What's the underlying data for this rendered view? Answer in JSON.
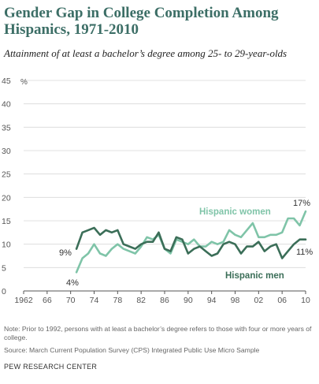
{
  "chart_data": {
    "type": "line",
    "title": "Gender Gap in College Completion Among Hispanics, 1971-2010",
    "subtitle": "Attainment of at least a bachelor’s degree among 25- to 29-year-olds",
    "ylabel": "%",
    "ylim": [
      0,
      45
    ],
    "yticks": [
      0,
      5,
      10,
      15,
      20,
      25,
      30,
      35,
      40,
      45
    ],
    "xlim": [
      1962,
      2010
    ],
    "xticks": [
      1962,
      1966,
      1970,
      1974,
      1978,
      1982,
      1986,
      1990,
      1994,
      1998,
      2002,
      2006,
      2010
    ],
    "xtick_labels": [
      "1962",
      "66",
      "70",
      "74",
      "78",
      "82",
      "86",
      "90",
      "94",
      "98",
      "02",
      "06",
      "10"
    ],
    "grid": "horizontal",
    "x": [
      1971,
      1972,
      1973,
      1974,
      1975,
      1976,
      1977,
      1978,
      1979,
      1980,
      1981,
      1982,
      1983,
      1984,
      1985,
      1986,
      1987,
      1988,
      1989,
      1990,
      1991,
      1992,
      1993,
      1994,
      1995,
      1996,
      1997,
      1998,
      1999,
      2000,
      2001,
      2002,
      2003,
      2004,
      2005,
      2006,
      2007,
      2008,
      2009,
      2010
    ],
    "series": [
      {
        "name": "Hispanic women",
        "color": "#7fc4a8",
        "values": [
          4,
          7,
          8,
          10,
          8,
          7.5,
          9,
          10,
          9,
          8.5,
          8,
          9.5,
          11.5,
          11,
          12,
          9,
          8,
          11,
          10.5,
          10,
          11,
          9.5,
          9.5,
          10.5,
          10,
          10.5,
          13,
          12,
          11.5,
          13,
          14.5,
          11.5,
          11.5,
          12,
          12,
          12.5,
          15.5,
          15.5,
          14,
          17
        ]
      },
      {
        "name": "Hispanic men",
        "color": "#3b6e58",
        "values": [
          9,
          12.5,
          13,
          13.5,
          12,
          13,
          12.5,
          13,
          10,
          9.5,
          9,
          10,
          10.5,
          10.5,
          12.5,
          9,
          8.5,
          11.5,
          11,
          8,
          9,
          9.5,
          8.5,
          7.5,
          8,
          10,
          10.5,
          10,
          8,
          9.5,
          9.5,
          10.5,
          8.5,
          9.5,
          10,
          7,
          8.5,
          10,
          11,
          11
        ]
      }
    ],
    "labels": {
      "women_series": "Hispanic women",
      "men_series": "Hispanic men",
      "start_men": "9%",
      "start_women": "4%",
      "end_women": "17%",
      "end_men": "11%"
    }
  },
  "footer": {
    "note": "Note: Prior to 1992, persons with at least a bachelor’s degree refers to those with four or more years of college.",
    "source": "Source: March Current Population Survey (CPS) Integrated Public Use Micro Sample",
    "credit": "PEW RESEARCH CENTER"
  }
}
